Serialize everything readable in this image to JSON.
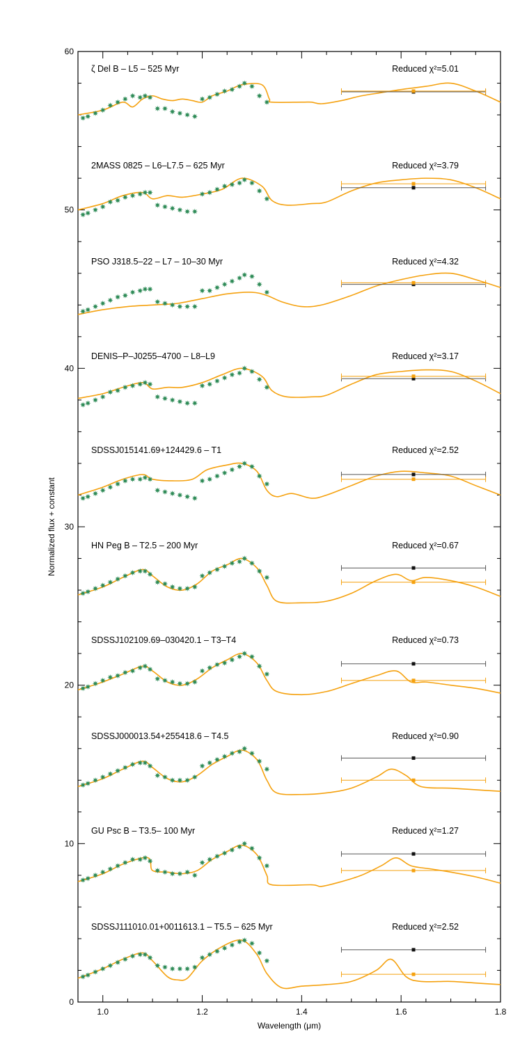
{
  "chart_data": {
    "type": "line",
    "title": "",
    "xlabel": "Wavelength (μm)",
    "ylabel": "Normalized flux + constant",
    "xlim": [
      0.95,
      1.8
    ],
    "ylim": [
      0,
      60
    ],
    "x_ticks": [
      1.0,
      1.2,
      1.4,
      1.6,
      1.8
    ],
    "y_ticks": [
      0,
      10,
      20,
      30,
      40,
      50,
      60
    ],
    "x_tick_labels": [
      "1.0",
      "1.2",
      "1.4",
      "1.6",
      "1.8"
    ],
    "y_tick_labels": [
      "0",
      "10",
      "20",
      "30",
      "40",
      "50",
      "60"
    ],
    "colors": {
      "model": "#f5a10e",
      "points": "#2e8b57",
      "errbar_black": "#555555",
      "errbar_orange": "#f5a10e"
    },
    "legend_label_prefix": "Reduced χ²=",
    "photometry_x": 1.625,
    "photometry_xerr": [
      1.48,
      1.77
    ],
    "series": [
      {
        "name": "ζ Del B – L5 – 525 Myr",
        "chi2": "5.01",
        "points_x": [
          0.96,
          0.97,
          0.985,
          1.0,
          1.015,
          1.03,
          1.045,
          1.06,
          1.075,
          1.085,
          1.095,
          1.11,
          1.125,
          1.14,
          1.155,
          1.17,
          1.185,
          1.2,
          1.215,
          1.23,
          1.245,
          1.26,
          1.275,
          1.285,
          1.3,
          1.315,
          1.33
        ],
        "points_y": [
          55.8,
          55.9,
          56.1,
          56.3,
          56.6,
          56.8,
          57.0,
          57.2,
          57.1,
          57.2,
          57.1,
          56.4,
          56.4,
          56.2,
          56.1,
          56.0,
          55.9,
          57.0,
          57.1,
          57.3,
          57.5,
          57.6,
          57.8,
          58.0,
          57.8,
          57.2,
          56.8
        ],
        "model_x": [
          0.95,
          1.0,
          1.04,
          1.06,
          1.08,
          1.1,
          1.12,
          1.14,
          1.16,
          1.18,
          1.2,
          1.22,
          1.25,
          1.28,
          1.32,
          1.335,
          1.34,
          1.4,
          1.42,
          1.44,
          1.48,
          1.52,
          1.56,
          1.6,
          1.65,
          1.7,
          1.75,
          1.8
        ],
        "model_y": [
          56.0,
          56.3,
          56.8,
          56.5,
          57.0,
          57.2,
          57.0,
          56.9,
          57.0,
          56.9,
          56.8,
          57.2,
          57.5,
          57.9,
          57.9,
          57.0,
          56.8,
          56.8,
          56.8,
          56.7,
          56.9,
          57.2,
          57.4,
          57.6,
          57.8,
          58.0,
          57.5,
          56.8
        ],
        "phot_model": 57.5,
        "phot_obs": 57.45
      },
      {
        "name": "2MASS 0825 – L6–L7.5 – 625 Myr",
        "chi2": "3.79",
        "points_x": [
          0.96,
          0.97,
          0.985,
          1.0,
          1.015,
          1.03,
          1.045,
          1.06,
          1.075,
          1.085,
          1.095,
          1.11,
          1.125,
          1.14,
          1.155,
          1.17,
          1.185,
          1.2,
          1.215,
          1.23,
          1.245,
          1.26,
          1.275,
          1.285,
          1.3,
          1.315,
          1.33
        ],
        "points_y": [
          49.7,
          49.8,
          50.0,
          50.2,
          50.5,
          50.6,
          50.8,
          50.9,
          51.0,
          51.1,
          51.1,
          50.3,
          50.2,
          50.1,
          50.0,
          49.9,
          49.9,
          51.0,
          51.1,
          51.3,
          51.5,
          51.6,
          51.7,
          51.9,
          51.7,
          51.2,
          50.7
        ],
        "model_x": [
          0.95,
          1.0,
          1.04,
          1.08,
          1.1,
          1.13,
          1.16,
          1.2,
          1.24,
          1.28,
          1.32,
          1.34,
          1.37,
          1.42,
          1.45,
          1.5,
          1.55,
          1.6,
          1.65,
          1.7,
          1.75,
          1.8
        ],
        "model_y": [
          50.0,
          50.4,
          50.9,
          51.1,
          50.7,
          50.9,
          50.8,
          51.0,
          51.3,
          52.0,
          51.5,
          50.6,
          50.3,
          50.4,
          50.5,
          51.2,
          51.7,
          51.9,
          52.0,
          51.9,
          51.4,
          50.7
        ],
        "phot_model": 51.65,
        "phot_obs": 51.4
      },
      {
        "name": "PSO J318.5–22 – L7 – 10–30 Myr",
        "chi2": "4.32",
        "points_x": [
          0.96,
          0.97,
          0.985,
          1.0,
          1.015,
          1.03,
          1.045,
          1.06,
          1.075,
          1.085,
          1.095,
          1.11,
          1.125,
          1.14,
          1.155,
          1.17,
          1.185,
          1.2,
          1.215,
          1.23,
          1.245,
          1.26,
          1.275,
          1.285,
          1.3,
          1.315,
          1.33
        ],
        "points_y": [
          43.6,
          43.7,
          43.9,
          44.1,
          44.3,
          44.5,
          44.6,
          44.8,
          44.9,
          45.0,
          45.0,
          44.2,
          44.1,
          44.0,
          43.9,
          43.9,
          43.9,
          44.9,
          44.9,
          45.1,
          45.3,
          45.5,
          45.7,
          45.9,
          45.8,
          45.3,
          44.8
        ],
        "model_x": [
          0.95,
          1.0,
          1.05,
          1.1,
          1.15,
          1.2,
          1.25,
          1.3,
          1.33,
          1.36,
          1.4,
          1.44,
          1.5,
          1.55,
          1.6,
          1.65,
          1.7,
          1.75,
          1.8
        ],
        "model_y": [
          43.4,
          43.7,
          43.9,
          44.0,
          44.1,
          44.4,
          44.7,
          44.8,
          44.6,
          44.2,
          43.9,
          44.0,
          44.6,
          45.2,
          45.6,
          45.9,
          46.0,
          45.6,
          45.1
        ],
        "phot_model": 45.4,
        "phot_obs": 45.3
      },
      {
        "name": "DENIS–P–J0255–4700 – L8–L9",
        "chi2": "3.17",
        "points_x": [
          0.96,
          0.97,
          0.985,
          1.0,
          1.015,
          1.03,
          1.045,
          1.06,
          1.075,
          1.085,
          1.095,
          1.11,
          1.125,
          1.14,
          1.155,
          1.17,
          1.185,
          1.2,
          1.215,
          1.23,
          1.245,
          1.26,
          1.275,
          1.285,
          1.3,
          1.315,
          1.33
        ],
        "points_y": [
          37.7,
          37.8,
          38.0,
          38.2,
          38.5,
          38.6,
          38.8,
          38.9,
          39.0,
          39.1,
          39.0,
          38.2,
          38.1,
          38.0,
          37.9,
          37.8,
          37.8,
          38.9,
          39.0,
          39.2,
          39.4,
          39.6,
          39.7,
          40.0,
          39.8,
          39.3,
          38.8
        ],
        "model_x": [
          0.95,
          1.0,
          1.04,
          1.08,
          1.1,
          1.13,
          1.16,
          1.2,
          1.24,
          1.28,
          1.32,
          1.34,
          1.37,
          1.42,
          1.45,
          1.5,
          1.55,
          1.6,
          1.65,
          1.7,
          1.75,
          1.8
        ],
        "model_y": [
          38.1,
          38.4,
          38.8,
          39.1,
          38.7,
          38.8,
          38.8,
          39.1,
          39.6,
          40.0,
          39.5,
          38.6,
          38.2,
          38.2,
          38.3,
          39.0,
          39.6,
          39.8,
          39.9,
          39.8,
          39.2,
          38.4
        ],
        "phot_model": 39.5,
        "phot_obs": 39.35
      },
      {
        "name": "SDSSJ015141.69+124429.6 – T1",
        "chi2": "2.52",
        "points_x": [
          0.96,
          0.97,
          0.985,
          1.0,
          1.015,
          1.03,
          1.045,
          1.06,
          1.075,
          1.085,
          1.095,
          1.11,
          1.125,
          1.14,
          1.155,
          1.17,
          1.185,
          1.2,
          1.215,
          1.23,
          1.245,
          1.26,
          1.275,
          1.285,
          1.3,
          1.315,
          1.33
        ],
        "points_y": [
          31.8,
          31.9,
          32.1,
          32.3,
          32.5,
          32.7,
          32.9,
          33.0,
          33.0,
          33.1,
          33.0,
          32.3,
          32.2,
          32.1,
          32.0,
          31.9,
          31.8,
          32.9,
          33.0,
          33.2,
          33.4,
          33.6,
          33.8,
          34.0,
          33.8,
          33.2,
          32.7
        ],
        "model_x": [
          0.95,
          1.0,
          1.04,
          1.08,
          1.1,
          1.14,
          1.18,
          1.21,
          1.25,
          1.28,
          1.31,
          1.33,
          1.35,
          1.38,
          1.42,
          1.45,
          1.5,
          1.55,
          1.6,
          1.65,
          1.7,
          1.75,
          1.8
        ],
        "model_y": [
          32.0,
          32.5,
          33.0,
          33.3,
          33.0,
          32.9,
          33.0,
          33.6,
          33.9,
          34.0,
          33.5,
          32.3,
          31.9,
          32.1,
          31.8,
          32.0,
          32.6,
          33.2,
          33.5,
          33.4,
          33.2,
          32.6,
          32.0
        ],
        "phot_model": 33.0,
        "phot_obs": 33.3
      },
      {
        "name": "HN Peg B – T2.5 – 200 Myr",
        "chi2": "0.67",
        "points_x": [
          0.96,
          0.97,
          0.985,
          1.0,
          1.015,
          1.03,
          1.045,
          1.06,
          1.075,
          1.085,
          1.095,
          1.11,
          1.125,
          1.14,
          1.155,
          1.17,
          1.185,
          1.2,
          1.215,
          1.23,
          1.245,
          1.26,
          1.275,
          1.285,
          1.3,
          1.315,
          1.33
        ],
        "points_y": [
          25.8,
          25.9,
          26.1,
          26.3,
          26.5,
          26.7,
          26.9,
          27.1,
          27.2,
          27.2,
          27.0,
          26.5,
          26.4,
          26.2,
          26.1,
          26.1,
          26.2,
          26.9,
          27.1,
          27.3,
          27.5,
          27.7,
          27.8,
          28.0,
          27.7,
          27.2,
          26.8
        ],
        "model_x": [
          0.95,
          1.0,
          1.04,
          1.08,
          1.1,
          1.13,
          1.16,
          1.19,
          1.22,
          1.25,
          1.28,
          1.31,
          1.33,
          1.35,
          1.4,
          1.45,
          1.5,
          1.55,
          1.59,
          1.62,
          1.65,
          1.7,
          1.75,
          1.8
        ],
        "model_y": [
          25.7,
          26.2,
          26.8,
          27.3,
          26.9,
          26.2,
          26.0,
          26.4,
          27.2,
          27.6,
          28.0,
          27.4,
          26.3,
          25.3,
          25.2,
          25.3,
          25.8,
          26.6,
          27.0,
          26.6,
          26.8,
          26.6,
          26.2,
          25.6
        ],
        "phot_model": 26.5,
        "phot_obs": 27.4
      },
      {
        "name": "SDSSJ102109.69–030420.1 – T3–T4",
        "chi2": "0.73",
        "points_x": [
          0.96,
          0.97,
          0.985,
          1.0,
          1.015,
          1.03,
          1.045,
          1.06,
          1.075,
          1.085,
          1.095,
          1.11,
          1.125,
          1.14,
          1.155,
          1.17,
          1.185,
          1.2,
          1.215,
          1.23,
          1.245,
          1.26,
          1.275,
          1.285,
          1.3,
          1.315,
          1.33
        ],
        "points_y": [
          19.8,
          19.9,
          20.1,
          20.3,
          20.5,
          20.6,
          20.8,
          20.9,
          21.1,
          21.2,
          21.0,
          20.4,
          20.3,
          20.2,
          20.1,
          20.1,
          20.2,
          20.9,
          21.1,
          21.3,
          21.4,
          21.6,
          21.8,
          22.0,
          21.8,
          21.2,
          20.7
        ],
        "model_x": [
          0.95,
          1.0,
          1.04,
          1.08,
          1.1,
          1.13,
          1.16,
          1.19,
          1.22,
          1.25,
          1.28,
          1.31,
          1.33,
          1.35,
          1.4,
          1.45,
          1.5,
          1.55,
          1.59,
          1.62,
          1.65,
          1.7,
          1.75,
          1.8
        ],
        "model_y": [
          19.7,
          20.2,
          20.7,
          21.2,
          20.9,
          20.2,
          20.0,
          20.4,
          21.1,
          21.6,
          22.0,
          21.4,
          20.3,
          19.6,
          19.4,
          19.6,
          20.1,
          20.6,
          20.9,
          20.2,
          20.2,
          20.0,
          19.8,
          19.5
        ],
        "phot_model": 20.3,
        "phot_obs": 21.35
      },
      {
        "name": "SDSSJ000013.54+255418.6 – T4.5",
        "chi2": "0.90",
        "points_x": [
          0.96,
          0.97,
          0.985,
          1.0,
          1.015,
          1.03,
          1.045,
          1.06,
          1.075,
          1.085,
          1.095,
          1.11,
          1.125,
          1.14,
          1.155,
          1.17,
          1.185,
          1.2,
          1.215,
          1.23,
          1.245,
          1.26,
          1.275,
          1.285,
          1.3,
          1.315,
          1.33
        ],
        "points_y": [
          13.7,
          13.8,
          14.0,
          14.2,
          14.4,
          14.6,
          14.8,
          15.0,
          15.1,
          15.1,
          14.9,
          14.3,
          14.2,
          14.0,
          14.0,
          14.0,
          14.2,
          14.9,
          15.1,
          15.3,
          15.5,
          15.7,
          15.8,
          16.0,
          15.7,
          15.2,
          14.7
        ],
        "model_x": [
          0.95,
          1.0,
          1.04,
          1.08,
          1.1,
          1.13,
          1.16,
          1.19,
          1.22,
          1.25,
          1.28,
          1.31,
          1.33,
          1.35,
          1.4,
          1.45,
          1.5,
          1.55,
          1.58,
          1.61,
          1.64,
          1.7,
          1.75,
          1.8
        ],
        "model_y": [
          13.6,
          14.1,
          14.7,
          15.2,
          14.8,
          14.1,
          13.9,
          14.3,
          15.0,
          15.5,
          15.9,
          15.3,
          14.0,
          13.2,
          13.1,
          13.2,
          13.5,
          14.2,
          14.7,
          14.3,
          13.6,
          13.5,
          13.4,
          13.3
        ],
        "phot_model": 14.0,
        "phot_obs": 15.4
      },
      {
        "name": "GU Psc B – T3.5– 100 Myr",
        "chi2": "1.27",
        "points_x": [
          0.96,
          0.97,
          0.985,
          1.0,
          1.015,
          1.03,
          1.045,
          1.06,
          1.075,
          1.085,
          1.095,
          1.11,
          1.125,
          1.14,
          1.155,
          1.17,
          1.185,
          1.2,
          1.215,
          1.23,
          1.245,
          1.26,
          1.275,
          1.285,
          1.3,
          1.315,
          1.33
        ],
        "points_y": [
          7.7,
          7.8,
          8.0,
          8.2,
          8.4,
          8.6,
          8.8,
          9.0,
          9.0,
          9.1,
          8.9,
          8.3,
          8.2,
          8.1,
          8.1,
          8.2,
          8.0,
          8.8,
          9.0,
          9.2,
          9.4,
          9.6,
          9.8,
          10.0,
          9.7,
          9.1,
          8.6
        ],
        "model_x": [
          0.95,
          1.0,
          1.04,
          1.08,
          1.095,
          1.1,
          1.13,
          1.16,
          1.19,
          1.22,
          1.25,
          1.28,
          1.31,
          1.33,
          1.34,
          1.42,
          1.44,
          1.48,
          1.52,
          1.56,
          1.59,
          1.62,
          1.66,
          1.7,
          1.75,
          1.8
        ],
        "model_y": [
          7.6,
          8.1,
          8.7,
          9.1,
          9.0,
          8.3,
          8.2,
          8.1,
          8.3,
          9.0,
          9.5,
          9.9,
          9.3,
          8.0,
          7.4,
          7.4,
          7.3,
          7.6,
          8.0,
          8.6,
          9.1,
          8.6,
          8.4,
          8.2,
          7.9,
          7.5
        ],
        "phot_model": 8.3,
        "phot_obs": 9.35
      },
      {
        "name": "SDSSJ111010.01+0011613.1 – T5.5 – 625 Myr",
        "chi2": "2.52",
        "points_x": [
          0.96,
          0.97,
          0.985,
          1.0,
          1.015,
          1.03,
          1.045,
          1.06,
          1.075,
          1.085,
          1.095,
          1.11,
          1.125,
          1.14,
          1.155,
          1.17,
          1.185,
          1.2,
          1.215,
          1.23,
          1.245,
          1.26,
          1.275,
          1.285,
          1.3,
          1.315,
          1.33
        ],
        "points_y": [
          1.6,
          1.7,
          1.9,
          2.1,
          2.3,
          2.5,
          2.7,
          2.9,
          3.0,
          3.0,
          2.8,
          2.3,
          2.2,
          2.1,
          2.1,
          2.1,
          2.2,
          2.8,
          3.0,
          3.2,
          3.4,
          3.6,
          3.8,
          3.9,
          3.7,
          3.1,
          2.6
        ],
        "model_x": [
          0.95,
          1.0,
          1.04,
          1.08,
          1.1,
          1.13,
          1.15,
          1.17,
          1.2,
          1.24,
          1.28,
          1.31,
          1.33,
          1.36,
          1.4,
          1.45,
          1.5,
          1.55,
          1.58,
          1.61,
          1.64,
          1.7,
          1.75,
          1.8
        ],
        "model_y": [
          1.5,
          2.1,
          2.7,
          3.1,
          2.6,
          1.6,
          1.4,
          1.5,
          2.6,
          3.5,
          3.9,
          3.0,
          1.8,
          0.9,
          1.0,
          1.1,
          1.3,
          2.0,
          2.7,
          1.6,
          1.3,
          1.3,
          1.2,
          1.1
        ],
        "phot_model": 1.75,
        "phot_obs": 3.3
      }
    ]
  }
}
